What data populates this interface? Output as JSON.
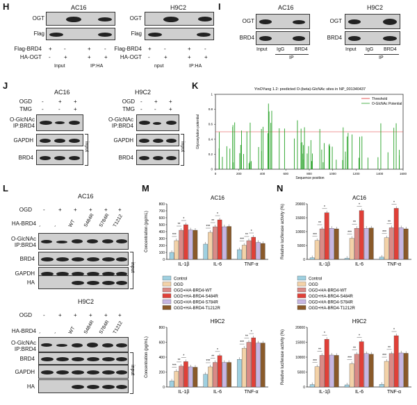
{
  "panels": {
    "H": "H",
    "I": "I",
    "J": "J",
    "K": "K",
    "L": "L",
    "M": "M",
    "N": "N"
  },
  "H": {
    "cells": [
      "AC16",
      "H9C2"
    ],
    "rows": [
      "OGT",
      "Flag"
    ],
    "cond": [
      "Flag-BRD4",
      "HA-OGT"
    ],
    "signs": [
      [
        "+",
        "-",
        "+",
        "-"
      ],
      [
        "-",
        "+",
        "+",
        "+"
      ]
    ],
    "groups": [
      "Input",
      "IP:HA"
    ],
    "groups2": [
      "nput",
      "IP:HA"
    ]
  },
  "I": {
    "cells": [
      "AC16",
      "H9C2"
    ],
    "rows": [
      "OGT",
      "BRD4"
    ],
    "lanes": [
      "Input",
      "IgG",
      "BRD4"
    ],
    "ip": "IP"
  },
  "J": {
    "cells": [
      "AC16",
      "H9C2"
    ],
    "cond": [
      "OGD",
      "TMG"
    ],
    "signs": [
      [
        "-",
        "+",
        "+"
      ],
      [
        "-",
        "-",
        "+"
      ]
    ],
    "rows": [
      "O-GlcNAc IP:BRD4",
      "GAPDH",
      "BRD4"
    ],
    "input": "input"
  },
  "K": {
    "title": "YinOYang 1.2: predicted O-(beta)-GlcNAc sites in NP_001340437",
    "legend": [
      "Threshold",
      "O-GlcNAc Potential"
    ],
    "ylabel": "Glycosylation potential",
    "xlabel": "Sequence position",
    "xticks": [
      "0",
      "200",
      "400",
      "600",
      "800",
      "1000",
      "1200",
      "1400",
      "1600"
    ],
    "yticks": [
      "0",
      "0.2",
      "0.4",
      "0.6",
      "0.8",
      "1"
    ]
  },
  "L": {
    "cells": [
      "AC16",
      "H9C2"
    ],
    "cond": [
      "OGD",
      "HA-BRD4"
    ],
    "ogd": [
      "-",
      "+",
      "+",
      "+",
      "+",
      "+"
    ],
    "ha": [
      "-",
      "-",
      "WT",
      "S484R",
      "S784R",
      "T1212"
    ],
    "rows": [
      "O-GlcNAc IP:BRD4",
      "BRD4",
      "GAPDH",
      "HA"
    ],
    "input": "input"
  },
  "M": {
    "top_title": "AC16",
    "bottom_title": "H9C2",
    "ylabel": "Concentration (pg/mL)",
    "top_ylabel": "Concentration (pg/mL)",
    "categories": [
      "IL-1β",
      "IL-6",
      "TNF-α"
    ],
    "legend": [
      "Control",
      "OGD",
      "OGD+HA-BRD4-WT",
      "OGD+HA-BRD4-S484R",
      "OGD+HA-BRD4-S784R",
      "OGD+HA-BRD4-T1212R"
    ]
  },
  "N": {
    "top_title": "AC16",
    "bottom_title": "H9C2",
    "ylabel": "Relative luciferase activity (%)",
    "categories": [
      "IL-1β",
      "IL-6",
      "TNF-α"
    ],
    "legend": [
      "Control",
      "OGD",
      "OGD+HA-BRD4-WT",
      "OGD+HA-BRD4-S484R",
      "OGD+HA-BRD4-S784R",
      "OGD+HA-BRD4-T1212R"
    ]
  },
  "chart_data": [
    {
      "type": "bar",
      "id": "M-AC16",
      "title": "AC16",
      "ylabel": "Concentration (pg/mL)",
      "categories": [
        "IL-1β",
        "IL-6",
        "TNF-α"
      ],
      "ylim": [
        0,
        800
      ],
      "yticks": [
        0,
        100,
        200,
        300,
        400,
        500,
        600,
        700,
        800
      ],
      "series": [
        {
          "name": "Control",
          "values": [
            100,
            220,
            140
          ]
        },
        {
          "name": "OGD",
          "values": [
            270,
            390,
            205
          ]
        },
        {
          "name": "OGD+HA-BRD4-WT",
          "values": [
            420,
            470,
            270
          ]
        },
        {
          "name": "OGD+HA-BRD4-S484R",
          "values": [
            500,
            570,
            320
          ]
        },
        {
          "name": "OGD+HA-BRD4-S784R",
          "values": [
            425,
            470,
            245
          ]
        },
        {
          "name": "OGD+HA-BRD4-T1212R",
          "values": [
            420,
            475,
            230
          ]
        }
      ]
    },
    {
      "type": "bar",
      "id": "M-H9C2",
      "title": "H9C2",
      "ylabel": "Concentration (pg/mL)",
      "categories": [
        "IL-1β",
        "IL-6",
        "TNF-α"
      ],
      "ylim": [
        0,
        800
      ],
      "yticks": [
        0,
        200,
        400,
        600,
        800
      ],
      "series": [
        {
          "name": "Control",
          "values": [
            80,
            170,
            370
          ]
        },
        {
          "name": "OGD",
          "values": [
            210,
            270,
            520
          ]
        },
        {
          "name": "OGD+HA-BRD4-WT",
          "values": [
            280,
            330,
            600
          ]
        },
        {
          "name": "OGD+HA-BRD4-S484R",
          "values": [
            340,
            420,
            660
          ]
        },
        {
          "name": "OGD+HA-BRD4-S784R",
          "values": [
            270,
            330,
            590
          ]
        },
        {
          "name": "OGD+HA-BRD4-T1212R",
          "values": [
            265,
            330,
            590
          ]
        }
      ]
    },
    {
      "type": "bar",
      "id": "N-AC16",
      "title": "AC16",
      "ylabel": "Relative luciferase activity (%)",
      "categories": [
        "IL-1β",
        "IL-6",
        "TNF-α"
      ],
      "ylim": [
        0,
        20000
      ],
      "yticks": [
        0,
        5000,
        10000,
        15000,
        20000
      ],
      "series": [
        {
          "name": "Control",
          "values": [
            600,
            400,
            800
          ]
        },
        {
          "name": "OGD",
          "values": [
            6800,
            7600,
            7800
          ]
        },
        {
          "name": "OGD+HA-BRD4-WT",
          "values": [
            11000,
            11200,
            11400
          ]
        },
        {
          "name": "OGD+HA-BRD4-S484R",
          "values": [
            16800,
            17600,
            18400
          ]
        },
        {
          "name": "OGD+HA-BRD4-S784R",
          "values": [
            11200,
            11200,
            11400
          ]
        },
        {
          "name": "OGD+HA-BRD4-T1212R",
          "values": [
            11000,
            11300,
            11000
          ]
        }
      ]
    },
    {
      "type": "bar",
      "id": "N-H9C2",
      "title": "H9C2",
      "ylabel": "Relative luciferase activity (%)",
      "categories": [
        "IL-1β",
        "IL-6",
        "TNF-α"
      ],
      "ylim": [
        0,
        20000
      ],
      "yticks": [
        0,
        5000,
        10000,
        15000,
        20000
      ],
      "series": [
        {
          "name": "Control",
          "values": [
            800,
            700,
            900
          ]
        },
        {
          "name": "OGD",
          "values": [
            6800,
            7800,
            8600
          ]
        },
        {
          "name": "OGD+HA-BRD4-WT",
          "values": [
            10600,
            11000,
            11200
          ]
        },
        {
          "name": "OGD+HA-BRD4-S484R",
          "values": [
            16000,
            15200,
            17200
          ]
        },
        {
          "name": "OGD+HA-BRD4-S784R",
          "values": [
            10700,
            11200,
            11400
          ]
        },
        {
          "name": "OGD+HA-BRD4-T1212R",
          "values": [
            10600,
            11000,
            11300
          ]
        }
      ]
    }
  ],
  "colors": {
    "control": "#9fd0e0",
    "ogd": "#f3d2a8",
    "wt": "#d98a86",
    "s484r": "#e04038",
    "s784r": "#c7b6e2",
    "t1212r": "#8a5a2a"
  },
  "sig": {
    "a": "**",
    "b": "***",
    "c": "*"
  }
}
